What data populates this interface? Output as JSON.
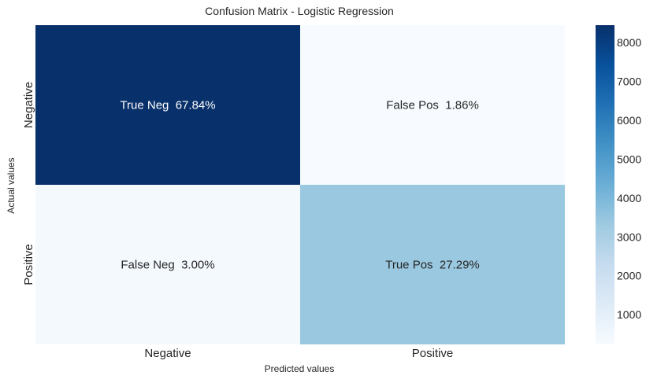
{
  "chart_data": {
    "type": "heatmap",
    "title": "Confusion Matrix - Logistic Regression",
    "xlabel": "Predicted values",
    "ylabel": "Actual values",
    "x_categories": [
      "Negative",
      "Positive"
    ],
    "y_categories": [
      "Negative",
      "Positive"
    ],
    "cells": [
      [
        {
          "label": "True Neg  67.84%",
          "value": 8450
        },
        {
          "label": "False Pos  1.86%",
          "value": 232
        }
      ],
      [
        {
          "label": "False Neg  3.00%",
          "value": 374
        },
        {
          "label": "True Pos  27.29%",
          "value": 3400
        }
      ]
    ],
    "colorbar": {
      "colormap": "Blues",
      "range": [
        232,
        8450
      ],
      "ticks": [
        1000,
        2000,
        3000,
        4000,
        5000,
        6000,
        7000,
        8000
      ]
    }
  }
}
